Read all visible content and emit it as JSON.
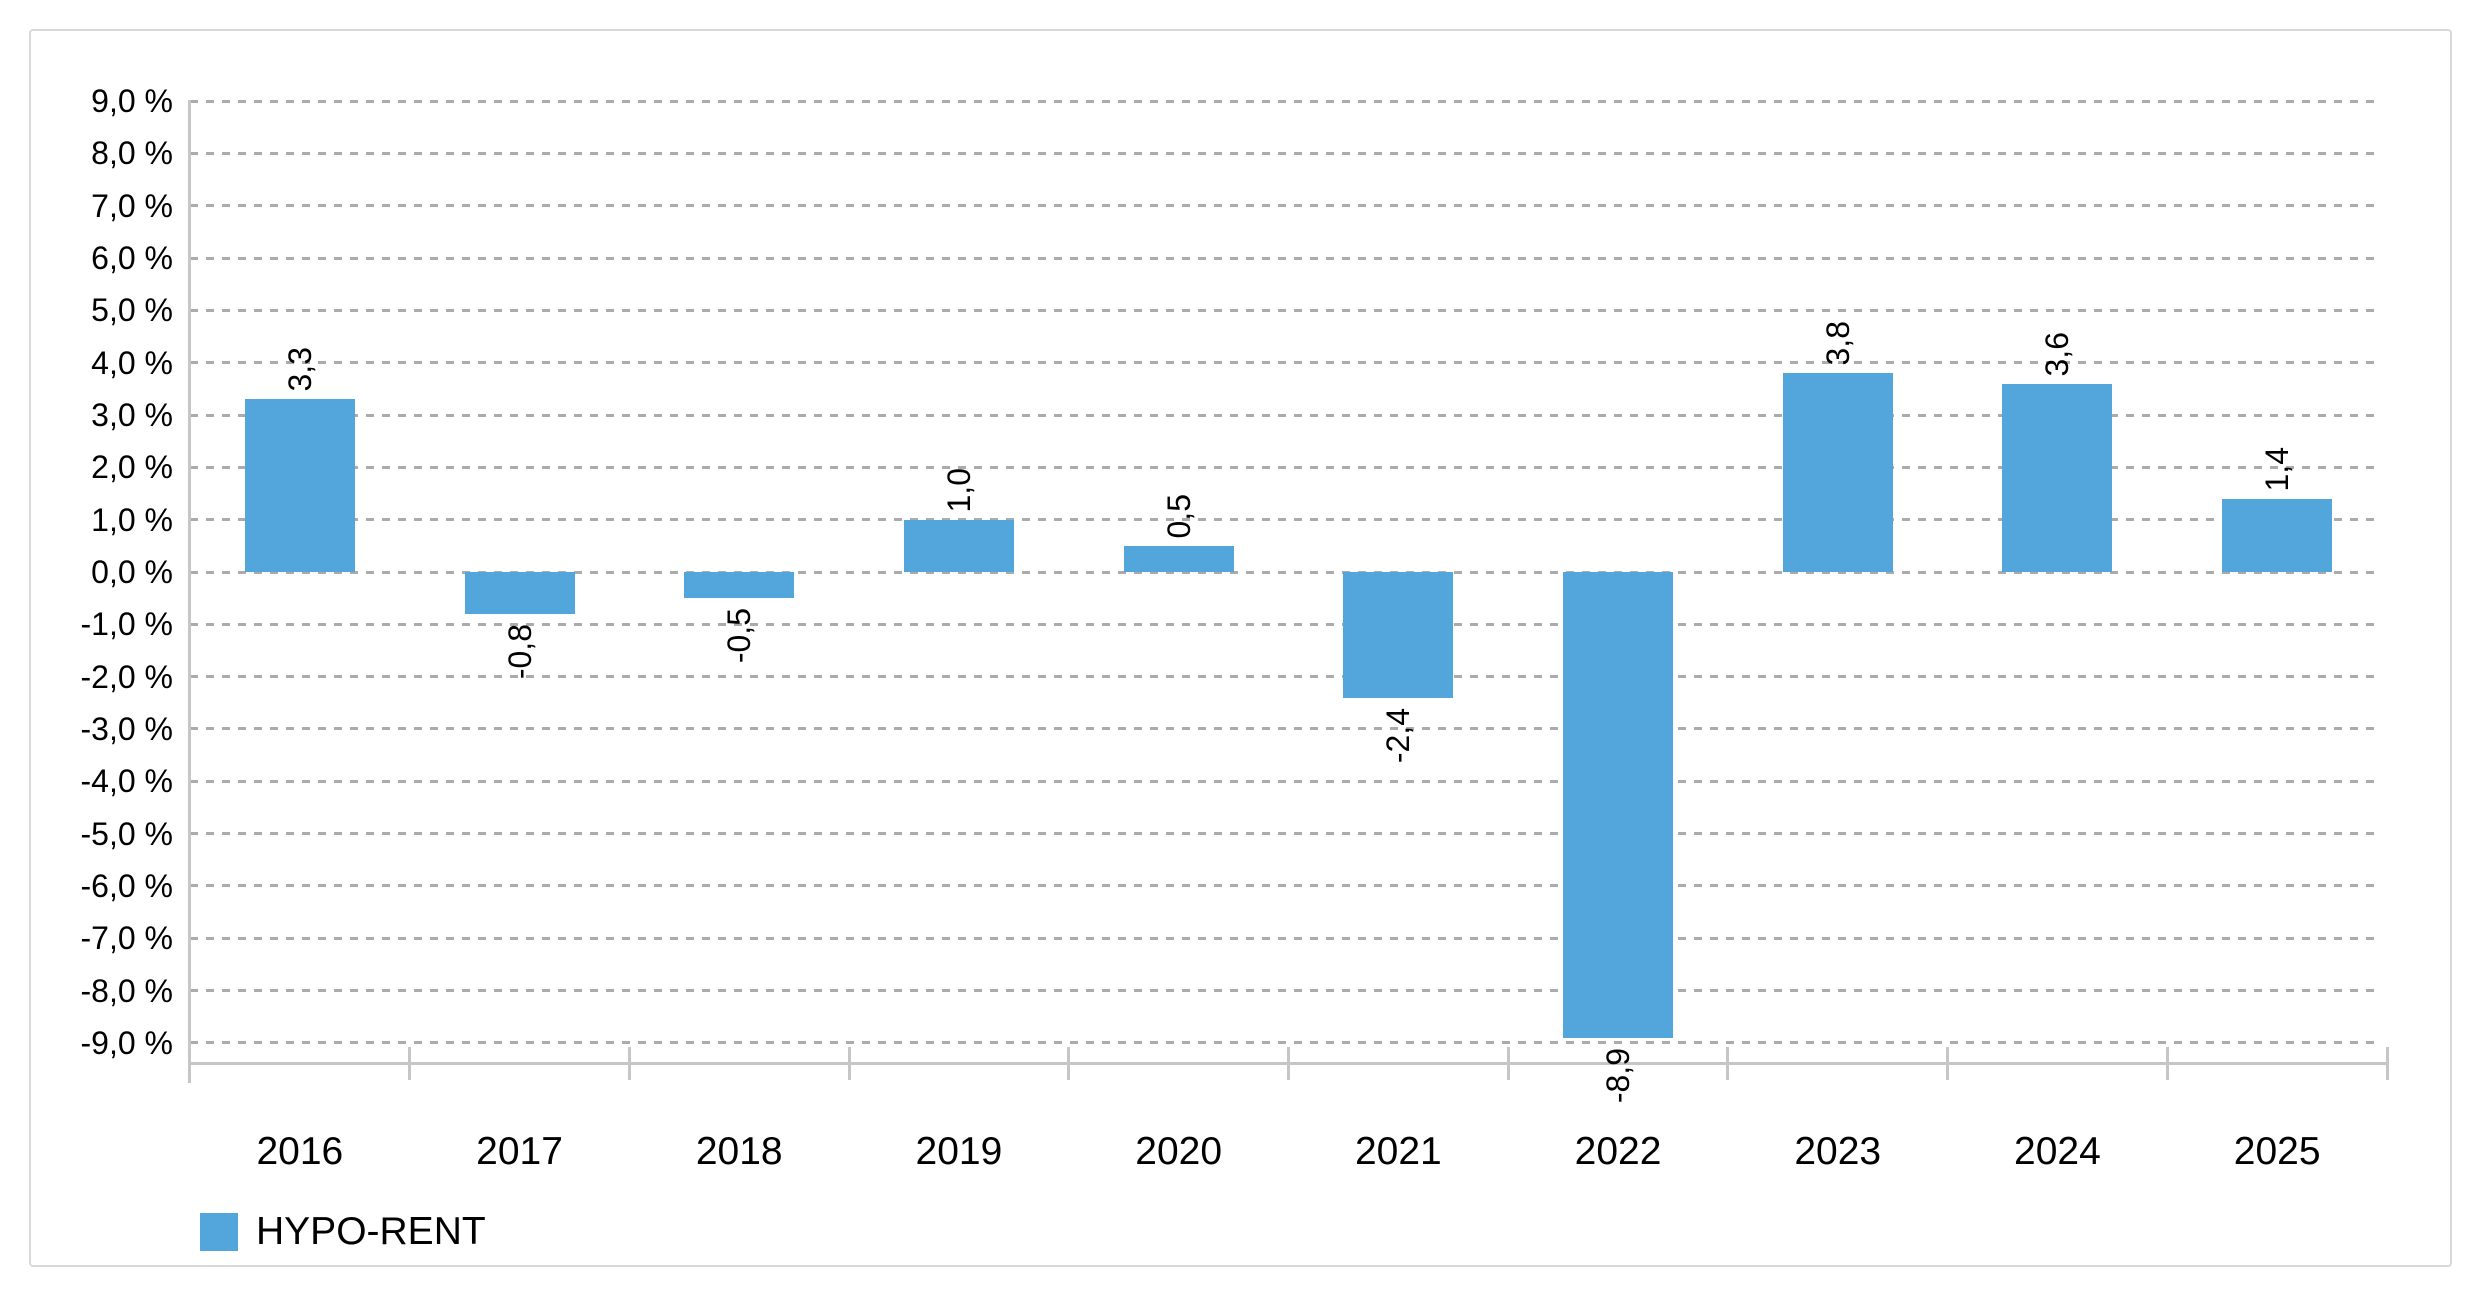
{
  "chart_data": {
    "type": "bar",
    "title": "",
    "categories": [
      "2016",
      "2017",
      "2018",
      "2019",
      "2020",
      "2021",
      "2022",
      "2023",
      "2024",
      "2025"
    ],
    "series": [
      {
        "name": "HYPO-RENT",
        "values": [
          3.3,
          -0.8,
          -0.5,
          1.0,
          0.5,
          -2.4,
          -8.9,
          3.8,
          3.6,
          1.4
        ],
        "color": "#52a6db"
      }
    ],
    "value_labels": [
      "3,3",
      "-0,8",
      "-0,5",
      "1,0",
      "0,5",
      "-2,4",
      "-8,9",
      "3,8",
      "3,6",
      "1,4"
    ],
    "value_label_rotation_deg": 90,
    "y_axis": {
      "min": -9,
      "max": 9,
      "step": 1,
      "unit": "%",
      "tick_labels": [
        "9,0 %",
        "8,0 %",
        "7,0 %",
        "6,0 %",
        "5,0 %",
        "4,0 %",
        "3,0 %",
        "2,0 %",
        "1,0 %",
        "0,0 %",
        "-1,0 %",
        "-2,0 %",
        "-3,0 %",
        "-4,0 %",
        "-5,0 %",
        "-6,0 %",
        "-7,0 %",
        "-8,0 %",
        "-9,0 %"
      ],
      "grid": "dashed"
    },
    "x_axis": {
      "tick_marks": "between-categories"
    },
    "legend": {
      "position": "bottom-left",
      "entries": [
        {
          "label": "HYPO-RENT",
          "color": "#52a6db"
        }
      ]
    }
  },
  "colors": {
    "bar": "#52a6db",
    "gridline": "#ababab",
    "axis": "#c6c6c6",
    "card_border": "#d9d9d9",
    "background": "#ffffff",
    "text": "#000000"
  }
}
